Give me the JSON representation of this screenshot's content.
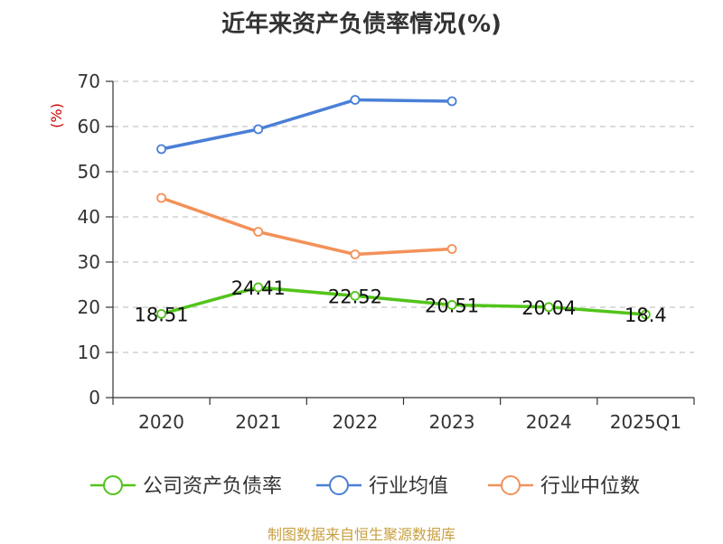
{
  "chart_data": {
    "type": "line",
    "title": "近年来资产负债率情况(%)",
    "ylabel": "(%)",
    "ylim": [
      0,
      70
    ],
    "yticks": [
      0,
      10,
      20,
      30,
      40,
      50,
      60,
      70
    ],
    "categories": [
      "2020",
      "2021",
      "2022",
      "2023",
      "2024",
      "2025Q1"
    ],
    "grid": true,
    "legend_position": "bottom",
    "series": [
      {
        "name": "公司资产负债率",
        "color": "#52c41a",
        "values": [
          18.51,
          24.41,
          22.52,
          20.51,
          20.04,
          18.4
        ],
        "labels": [
          "18.51",
          "24.41",
          "22.52",
          "20.51",
          "20.04",
          "18.4"
        ]
      },
      {
        "name": "行业均值",
        "color": "#4a7fd6",
        "values": [
          55.0,
          59.4,
          65.9,
          65.6,
          null,
          null
        ]
      },
      {
        "name": "行业中位数",
        "color": "#f39159",
        "values": [
          44.2,
          36.7,
          31.7,
          32.9,
          null,
          null
        ]
      }
    ]
  },
  "ylabel_color": "#cc0000",
  "source": "制图数据来自恒生聚源数据库"
}
